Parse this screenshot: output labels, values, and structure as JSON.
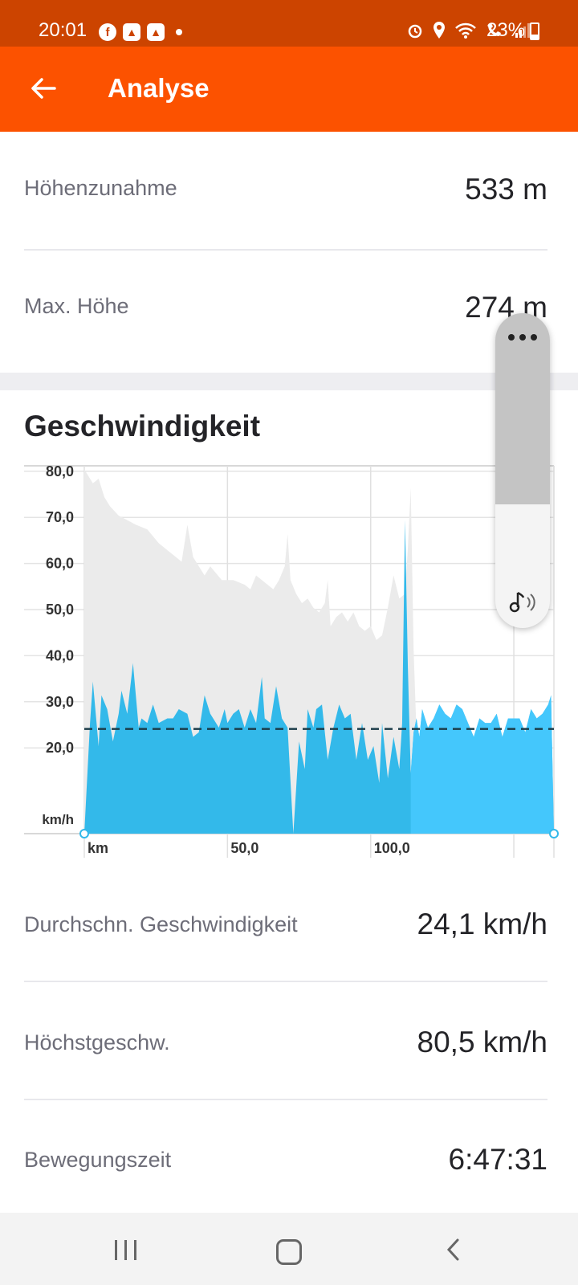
{
  "status_bar": {
    "time": "20:01",
    "battery": "23%",
    "left_icons": [
      "facebook-icon",
      "strava-icon",
      "strava-icon",
      "dot-icon"
    ],
    "right_icons": [
      "alarm-icon",
      "location-icon",
      "wifi-icon",
      "wifi-calling-icon",
      "signal-icon",
      "battery-icon"
    ],
    "colors": {
      "background": "#cc4400"
    }
  },
  "app_bar": {
    "title": "Analyse",
    "back_icon": "arrow-left-icon",
    "colors": {
      "background": "#fc5200"
    }
  },
  "elevation_stats": [
    {
      "label": "Höhenzunahme",
      "value": "533 m"
    },
    {
      "label": "Max. Höhe",
      "value": "274 m"
    }
  ],
  "speed_section": {
    "title": "Geschwindigkeit",
    "stats": [
      {
        "label": "Durchschn. Geschwindigkeit",
        "value": "24,1 km/h"
      },
      {
        "label": "Höchstgeschw.",
        "value": "80,5 km/h"
      },
      {
        "label": "Bewegungszeit",
        "value": "6:47:31"
      }
    ]
  },
  "chart_data": {
    "type": "area",
    "xlabel": "km",
    "ylabel": "km/h",
    "x_tick_labels": [
      "km",
      "50,0",
      "100,0"
    ],
    "y_tick_labels": [
      "20,0",
      "30,0",
      "40,0",
      "50,0",
      "60,0",
      "70,0",
      "80,0"
    ],
    "ylim": [
      0,
      80
    ],
    "xlim": [
      0,
      164
    ],
    "grid": true,
    "average_line": 24.1,
    "colors": {
      "speed": "#33b9ea",
      "speed_light": "#48c9ff",
      "elevation": "#ebebeb",
      "average_line": "#1c3d4a"
    },
    "speed_x": [
      0,
      2,
      3,
      5,
      6,
      8,
      10,
      12,
      13,
      15,
      17,
      19,
      20,
      22,
      24,
      26,
      29,
      31,
      33,
      36,
      38,
      40,
      42,
      44,
      47,
      49,
      50,
      52,
      54,
      56,
      58,
      60,
      62,
      63,
      65,
      67,
      69,
      71,
      73,
      75,
      77,
      78,
      80,
      81,
      83,
      85,
      87,
      89,
      91,
      93,
      95,
      97,
      99,
      101,
      103,
      104,
      106,
      108,
      110,
      111,
      112,
      113,
      114,
      115,
      116,
      117,
      118,
      120,
      122,
      124,
      126,
      128,
      130,
      132,
      134,
      136,
      138,
      140,
      142,
      144,
      146,
      148,
      150,
      152,
      154,
      156,
      158,
      160,
      162,
      163,
      164
    ],
    "speed_y": [
      0,
      24,
      33,
      19,
      30,
      27,
      20,
      26,
      31,
      26,
      37,
      23,
      25,
      24,
      28,
      24,
      25,
      25,
      27,
      26,
      21,
      22,
      30,
      26,
      23,
      27,
      24,
      26,
      27,
      23,
      27,
      24,
      34,
      25,
      24,
      32,
      25,
      23,
      0,
      20,
      14,
      27,
      23,
      27,
      28,
      16,
      23,
      28,
      25,
      26,
      16,
      24,
      16,
      19,
      11,
      24,
      12,
      21,
      14,
      24,
      68,
      36,
      13,
      22,
      25,
      21,
      27,
      23,
      25,
      28,
      26,
      25,
      28,
      27,
      24,
      21,
      25,
      24,
      24,
      26,
      21,
      25,
      25,
      25,
      22,
      27,
      25,
      26,
      28,
      30,
      0
    ],
    "elevation_x": [
      0,
      1,
      3,
      5,
      7,
      9,
      12,
      15,
      18,
      22,
      26,
      30,
      34,
      36,
      38,
      40,
      42,
      44,
      48,
      52,
      56,
      58,
      60,
      62,
      64,
      66,
      68,
      70,
      71,
      72,
      74,
      76,
      78,
      80,
      82,
      84,
      85,
      86,
      88,
      90,
      92,
      94,
      96,
      98,
      100,
      102,
      104,
      106,
      108,
      110,
      112,
      113,
      114,
      115,
      116,
      117,
      118,
      120,
      122,
      124,
      126,
      128,
      130,
      132,
      134,
      136,
      138,
      140,
      142,
      144,
      146,
      148,
      150,
      152,
      154,
      156,
      158,
      160,
      162,
      164
    ],
    "elevation_y": [
      79,
      78,
      76,
      77,
      73,
      71,
      69,
      68,
      67,
      66,
      63,
      61,
      59,
      67,
      60,
      58,
      56,
      58,
      55,
      55,
      54,
      53,
      56,
      55,
      54,
      53,
      55,
      58,
      65,
      55,
      52,
      50,
      51,
      49,
      48,
      50,
      55,
      45,
      47,
      48,
      46,
      48,
      45,
      44,
      45,
      42,
      43,
      49,
      56,
      51,
      52,
      62,
      75,
      40,
      22,
      12,
      5,
      6,
      3,
      5,
      2,
      4,
      3,
      2,
      4,
      3,
      2,
      3,
      2,
      3,
      2,
      4,
      3,
      2,
      3,
      3,
      2,
      3,
      2,
      2
    ]
  },
  "bottom_nav": {
    "items": [
      "recent-apps-icon",
      "home-icon",
      "back-icon"
    ]
  },
  "floating_panel": {
    "icons": [
      "more-dots-icon",
      "music-volume-icon"
    ]
  }
}
